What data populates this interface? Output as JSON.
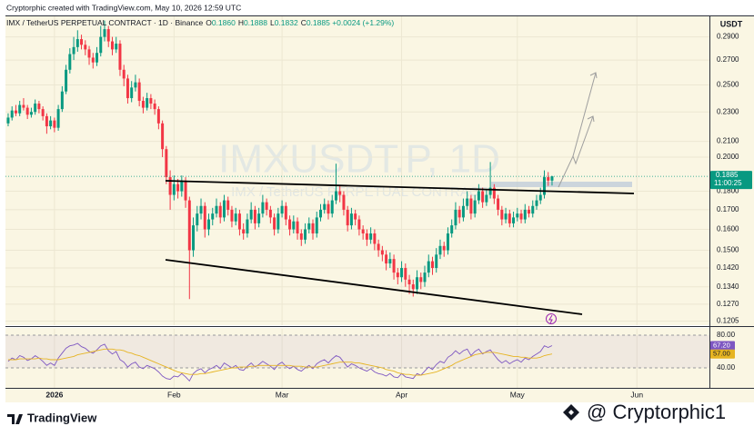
{
  "chart_data": {
    "type": "candlestick",
    "credit": "Cryptorphic created with TradingView.com, May 10, 2026 12:59 UTC",
    "title": "IMX / TetherUS PERPETUAL CONTRACT · 1D · Binance",
    "ohlc_labels": [
      "O",
      "H",
      "L",
      "C"
    ],
    "ohlc_values": [
      "0.1860",
      "0.1888",
      "0.1832",
      "0.1885"
    ],
    "change": "+0.0024 (+1.29%)",
    "watermark": "IMXUSDT.P, 1D",
    "watermark_sub": "IMX / TetherUS PERPETUAL CONTRACT",
    "currency": "USDT",
    "last_price_label": "0.1885",
    "countdown": "11:00:25",
    "up_color": "#089981",
    "down_color": "#f23645",
    "log_scale": true,
    "grid": true,
    "ylim": [
      0.119,
      0.309
    ],
    "yticks": [
      {
        "value": 0.29,
        "label": "0.2900"
      },
      {
        "value": 0.27,
        "label": "0.2700"
      },
      {
        "value": 0.25,
        "label": "0.2500"
      },
      {
        "value": 0.23,
        "label": "0.2300"
      },
      {
        "value": 0.21,
        "label": "0.2100"
      },
      {
        "value": 0.2,
        "label": "0.2000"
      },
      {
        "value": 0.18,
        "label": "0.1800"
      },
      {
        "value": 0.17,
        "label": "0.1700"
      },
      {
        "value": 0.16,
        "label": "0.1600"
      },
      {
        "value": 0.15,
        "label": "0.1500"
      },
      {
        "value": 0.142,
        "label": "0.1420"
      },
      {
        "value": 0.134,
        "label": "0.1340"
      },
      {
        "value": 0.127,
        "label": "0.1270"
      },
      {
        "value": 0.1205,
        "label": "0.1205"
      }
    ],
    "xlim": [
      -0.7,
      181.8
    ],
    "xticks": [
      {
        "value": 12,
        "label": "2026"
      },
      {
        "value": 43,
        "label": "Feb"
      },
      {
        "value": 71,
        "label": "Mar"
      },
      {
        "value": 102,
        "label": "Apr"
      },
      {
        "value": 132,
        "label": "May"
      },
      {
        "value": 163,
        "label": "Jun"
      }
    ],
    "candles": [
      [
        0.222,
        0.229,
        0.22,
        0.226
      ],
      [
        0.226,
        0.234,
        0.224,
        0.231
      ],
      [
        0.231,
        0.235,
        0.227,
        0.229
      ],
      [
        0.229,
        0.238,
        0.227,
        0.235
      ],
      [
        0.235,
        0.24,
        0.231,
        0.233
      ],
      [
        0.233,
        0.235,
        0.225,
        0.228
      ],
      [
        0.228,
        0.233,
        0.226,
        0.23
      ],
      [
        0.23,
        0.239,
        0.228,
        0.236
      ],
      [
        0.236,
        0.238,
        0.229,
        0.232
      ],
      [
        0.232,
        0.234,
        0.224,
        0.227
      ],
      [
        0.227,
        0.229,
        0.215,
        0.22
      ],
      [
        0.22,
        0.227,
        0.218,
        0.224
      ],
      [
        0.224,
        0.226,
        0.216,
        0.219
      ],
      [
        0.219,
        0.235,
        0.217,
        0.232
      ],
      [
        0.232,
        0.249,
        0.23,
        0.245
      ],
      [
        0.245,
        0.266,
        0.243,
        0.262
      ],
      [
        0.262,
        0.28,
        0.259,
        0.275
      ],
      [
        0.275,
        0.29,
        0.27,
        0.281
      ],
      [
        0.281,
        0.296,
        0.277,
        0.288
      ],
      [
        0.288,
        0.292,
        0.279,
        0.283
      ],
      [
        0.283,
        0.287,
        0.274,
        0.279
      ],
      [
        0.279,
        0.282,
        0.266,
        0.272
      ],
      [
        0.272,
        0.276,
        0.263,
        0.268
      ],
      [
        0.268,
        0.281,
        0.265,
        0.276
      ],
      [
        0.276,
        0.3,
        0.273,
        0.29
      ],
      [
        0.29,
        0.305,
        0.286,
        0.297
      ],
      [
        0.297,
        0.3,
        0.281,
        0.286
      ],
      [
        0.286,
        0.29,
        0.274,
        0.279
      ],
      [
        0.279,
        0.29,
        0.276,
        0.284
      ],
      [
        0.284,
        0.287,
        0.257,
        0.262
      ],
      [
        0.262,
        0.266,
        0.249,
        0.255
      ],
      [
        0.255,
        0.258,
        0.236,
        0.24
      ],
      [
        0.24,
        0.253,
        0.237,
        0.248
      ],
      [
        0.248,
        0.258,
        0.245,
        0.252
      ],
      [
        0.252,
        0.255,
        0.234,
        0.238
      ],
      [
        0.238,
        0.241,
        0.229,
        0.233
      ],
      [
        0.233,
        0.244,
        0.231,
        0.24
      ],
      [
        0.24,
        0.243,
        0.232,
        0.236
      ],
      [
        0.236,
        0.239,
        0.228,
        0.232
      ],
      [
        0.232,
        0.234,
        0.218,
        0.222
      ],
      [
        0.222,
        0.224,
        0.2,
        0.205
      ],
      [
        0.205,
        0.207,
        0.184,
        0.188
      ],
      [
        0.188,
        0.192,
        0.17,
        0.178
      ],
      [
        0.178,
        0.189,
        0.175,
        0.184
      ],
      [
        0.184,
        0.187,
        0.176,
        0.18
      ],
      [
        0.18,
        0.189,
        0.177,
        0.186
      ],
      [
        0.186,
        0.188,
        0.171,
        0.175
      ],
      [
        0.175,
        0.177,
        0.129,
        0.15
      ],
      [
        0.15,
        0.166,
        0.147,
        0.162
      ],
      [
        0.162,
        0.172,
        0.159,
        0.168
      ],
      [
        0.168,
        0.176,
        0.165,
        0.172
      ],
      [
        0.172,
        0.174,
        0.156,
        0.16
      ],
      [
        0.16,
        0.168,
        0.157,
        0.165
      ],
      [
        0.165,
        0.171,
        0.162,
        0.168
      ],
      [
        0.168,
        0.176,
        0.166,
        0.172
      ],
      [
        0.172,
        0.174,
        0.163,
        0.166
      ],
      [
        0.166,
        0.178,
        0.164,
        0.175
      ],
      [
        0.175,
        0.177,
        0.167,
        0.17
      ],
      [
        0.17,
        0.172,
        0.161,
        0.164
      ],
      [
        0.164,
        0.171,
        0.162,
        0.168
      ],
      [
        0.168,
        0.17,
        0.157,
        0.16
      ],
      [
        0.16,
        0.163,
        0.155,
        0.158
      ],
      [
        0.158,
        0.168,
        0.156,
        0.165
      ],
      [
        0.165,
        0.174,
        0.163,
        0.17
      ],
      [
        0.17,
        0.172,
        0.16,
        0.163
      ],
      [
        0.163,
        0.171,
        0.161,
        0.168
      ],
      [
        0.168,
        0.178,
        0.166,
        0.174
      ],
      [
        0.174,
        0.176,
        0.167,
        0.17
      ],
      [
        0.17,
        0.172,
        0.163,
        0.166
      ],
      [
        0.166,
        0.168,
        0.157,
        0.16
      ],
      [
        0.16,
        0.171,
        0.158,
        0.168
      ],
      [
        0.168,
        0.175,
        0.166,
        0.172
      ],
      [
        0.172,
        0.174,
        0.162,
        0.165
      ],
      [
        0.165,
        0.167,
        0.157,
        0.16
      ],
      [
        0.16,
        0.167,
        0.158,
        0.164
      ],
      [
        0.164,
        0.166,
        0.155,
        0.158
      ],
      [
        0.158,
        0.16,
        0.152,
        0.155
      ],
      [
        0.155,
        0.163,
        0.153,
        0.16
      ],
      [
        0.16,
        0.166,
        0.158,
        0.163
      ],
      [
        0.163,
        0.165,
        0.155,
        0.158
      ],
      [
        0.158,
        0.169,
        0.156,
        0.166
      ],
      [
        0.166,
        0.173,
        0.164,
        0.17
      ],
      [
        0.17,
        0.176,
        0.168,
        0.173
      ],
      [
        0.173,
        0.175,
        0.165,
        0.168
      ],
      [
        0.168,
        0.178,
        0.166,
        0.175
      ],
      [
        0.175,
        0.196,
        0.173,
        0.18
      ],
      [
        0.18,
        0.183,
        0.174,
        0.178
      ],
      [
        0.178,
        0.18,
        0.167,
        0.17
      ],
      [
        0.17,
        0.172,
        0.159,
        0.162
      ],
      [
        0.162,
        0.171,
        0.16,
        0.168
      ],
      [
        0.168,
        0.17,
        0.162,
        0.165
      ],
      [
        0.165,
        0.167,
        0.157,
        0.16
      ],
      [
        0.16,
        0.162,
        0.155,
        0.158
      ],
      [
        0.158,
        0.16,
        0.152,
        0.155
      ],
      [
        0.155,
        0.161,
        0.153,
        0.158
      ],
      [
        0.158,
        0.16,
        0.15,
        0.153
      ],
      [
        0.153,
        0.155,
        0.147,
        0.15
      ],
      [
        0.15,
        0.152,
        0.145,
        0.148
      ],
      [
        0.148,
        0.15,
        0.141,
        0.144
      ],
      [
        0.144,
        0.149,
        0.142,
        0.146
      ],
      [
        0.146,
        0.148,
        0.137,
        0.14
      ],
      [
        0.14,
        0.142,
        0.135,
        0.138
      ],
      [
        0.138,
        0.145,
        0.136,
        0.142
      ],
      [
        0.142,
        0.144,
        0.134,
        0.137
      ],
      [
        0.137,
        0.139,
        0.131,
        0.135
      ],
      [
        0.135,
        0.137,
        0.13,
        0.133
      ],
      [
        0.133,
        0.141,
        0.131,
        0.138
      ],
      [
        0.138,
        0.14,
        0.133,
        0.136
      ],
      [
        0.136,
        0.143,
        0.134,
        0.14
      ],
      [
        0.14,
        0.148,
        0.138,
        0.145
      ],
      [
        0.145,
        0.147,
        0.139,
        0.142
      ],
      [
        0.142,
        0.151,
        0.14,
        0.148
      ],
      [
        0.148,
        0.155,
        0.146,
        0.152
      ],
      [
        0.152,
        0.154,
        0.147,
        0.15
      ],
      [
        0.15,
        0.161,
        0.148,
        0.158
      ],
      [
        0.158,
        0.165,
        0.156,
        0.162
      ],
      [
        0.162,
        0.174,
        0.16,
        0.17
      ],
      [
        0.17,
        0.172,
        0.163,
        0.166
      ],
      [
        0.166,
        0.176,
        0.164,
        0.172
      ],
      [
        0.172,
        0.18,
        0.17,
        0.176
      ],
      [
        0.176,
        0.178,
        0.165,
        0.168
      ],
      [
        0.168,
        0.178,
        0.166,
        0.175
      ],
      [
        0.175,
        0.184,
        0.173,
        0.18
      ],
      [
        0.18,
        0.182,
        0.171,
        0.174
      ],
      [
        0.174,
        0.181,
        0.172,
        0.178
      ],
      [
        0.178,
        0.197,
        0.176,
        0.182
      ],
      [
        0.182,
        0.184,
        0.173,
        0.176
      ],
      [
        0.176,
        0.178,
        0.167,
        0.17
      ],
      [
        0.17,
        0.172,
        0.162,
        0.165
      ],
      [
        0.165,
        0.171,
        0.163,
        0.168
      ],
      [
        0.168,
        0.17,
        0.161,
        0.163
      ],
      [
        0.163,
        0.169,
        0.161,
        0.166
      ],
      [
        0.166,
        0.171,
        0.164,
        0.168
      ],
      [
        0.168,
        0.17,
        0.163,
        0.165
      ],
      [
        0.165,
        0.173,
        0.163,
        0.17
      ],
      [
        0.17,
        0.172,
        0.166,
        0.168
      ],
      [
        0.168,
        0.175,
        0.166,
        0.172
      ],
      [
        0.172,
        0.178,
        0.17,
        0.175
      ],
      [
        0.175,
        0.182,
        0.173,
        0.178
      ],
      [
        0.178,
        0.192,
        0.176,
        0.188
      ],
      [
        0.188,
        0.191,
        0.183,
        0.186
      ],
      [
        0.186,
        0.1888,
        0.1832,
        0.1885
      ]
    ],
    "rsi": {
      "type": "line",
      "ylim": [
        14.4,
        87.8
      ],
      "yticks": [
        {
          "value": 80,
          "label": "80.00"
        },
        {
          "value": 40,
          "label": "40.00"
        }
      ],
      "band_color": "#7e57c2",
      "series": [
        {
          "color": "#7e57c2",
          "last_label": "67.20",
          "values": [
            48,
            52,
            50,
            55,
            53,
            49,
            51,
            55,
            52,
            48,
            43,
            46,
            43,
            52,
            58,
            64,
            67,
            68,
            70,
            66,
            64,
            60,
            58,
            62,
            67,
            69,
            61,
            57,
            60,
            50,
            47,
            41,
            45,
            47,
            41,
            39,
            43,
            41,
            39,
            35,
            30,
            27,
            26,
            30,
            29,
            33,
            29,
            24,
            33,
            37,
            39,
            34,
            38,
            40,
            43,
            39,
            46,
            43,
            40,
            43,
            38,
            37,
            42,
            46,
            41,
            44,
            48,
            45,
            42,
            38,
            44,
            47,
            42,
            39,
            42,
            38,
            36,
            40,
            43,
            39,
            45,
            48,
            50,
            46,
            51,
            55,
            53,
            47,
            41,
            45,
            43,
            40,
            38,
            36,
            39,
            35,
            33,
            32,
            30,
            33,
            29,
            28,
            33,
            29,
            28,
            27,
            33,
            31,
            36,
            41,
            38,
            44,
            48,
            46,
            53,
            56,
            61,
            57,
            61,
            63,
            55,
            60,
            63,
            57,
            60,
            62,
            56,
            50,
            46,
            49,
            45,
            48,
            50,
            47,
            52,
            50,
            54,
            57,
            60,
            67,
            65,
            67.2
          ]
        },
        {
          "color": "#e6b422",
          "last_label": "57.00",
          "values": [
            50,
            50,
            50,
            51,
            51,
            51,
            51,
            51,
            52,
            51,
            51,
            50,
            50,
            50,
            51,
            52,
            53,
            54,
            56,
            57,
            58,
            59,
            60,
            61,
            62,
            63,
            63,
            63,
            62,
            62,
            61,
            59,
            58,
            56,
            55,
            53,
            51,
            49,
            47,
            45,
            43,
            41,
            39,
            37,
            35,
            34,
            33,
            32,
            32,
            32,
            33,
            33,
            34,
            35,
            36,
            37,
            38,
            39,
            40,
            40,
            41,
            41,
            41,
            42,
            42,
            43,
            43,
            43,
            43,
            43,
            43,
            43,
            43,
            43,
            42,
            42,
            42,
            41,
            41,
            41,
            41,
            42,
            43,
            44,
            45,
            46,
            47,
            47,
            47,
            47,
            46,
            46,
            45,
            44,
            43,
            42,
            41,
            40,
            38,
            37,
            36,
            34,
            33,
            32,
            32,
            31,
            31,
            31,
            32,
            33,
            34,
            35,
            37,
            39,
            41,
            43,
            46,
            48,
            50,
            52,
            54,
            56,
            57,
            58,
            59,
            59,
            59,
            58,
            57,
            56,
            55,
            54,
            54,
            53,
            53,
            52,
            52,
            52,
            53,
            55,
            56,
            57
          ]
        }
      ]
    },
    "brand": "TradingView",
    "handle": "@ Cryptorphic1"
  }
}
